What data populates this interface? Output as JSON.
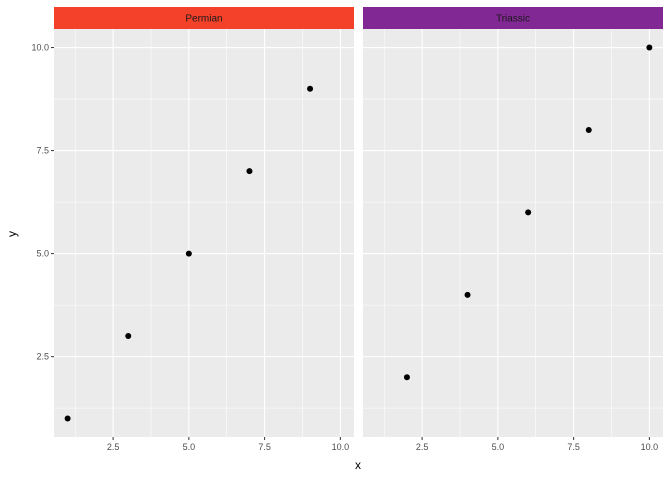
{
  "chart_data": {
    "type": "scatter",
    "title": "",
    "xlabel": "x",
    "ylabel": "y",
    "xlim": [
      0.55,
      10.45
    ],
    "ylim": [
      0.55,
      10.45
    ],
    "x_ticks": [
      2.5,
      5.0,
      7.5,
      10.0
    ],
    "x_tick_labels": [
      "2.5",
      "5.0",
      "7.5",
      "10.0"
    ],
    "y_ticks": [
      2.5,
      5.0,
      7.5,
      10.0
    ],
    "y_tick_labels": [
      "2.5",
      "5.0",
      "7.5",
      "10.0"
    ],
    "grid": true,
    "panel_background": "#EBEBEB",
    "point_color": "#000000",
    "facets": [
      {
        "name": "Permian",
        "strip_color": "#F4412A",
        "points": [
          {
            "x": 1,
            "y": 1
          },
          {
            "x": 3,
            "y": 3
          },
          {
            "x": 5,
            "y": 5
          },
          {
            "x": 7,
            "y": 7
          },
          {
            "x": 9,
            "y": 9
          }
        ]
      },
      {
        "name": "Triassic",
        "strip_color": "#822895",
        "points": [
          {
            "x": 2,
            "y": 2
          },
          {
            "x": 4,
            "y": 4
          },
          {
            "x": 6,
            "y": 6
          },
          {
            "x": 8,
            "y": 8
          },
          {
            "x": 10,
            "y": 10
          }
        ]
      }
    ]
  }
}
